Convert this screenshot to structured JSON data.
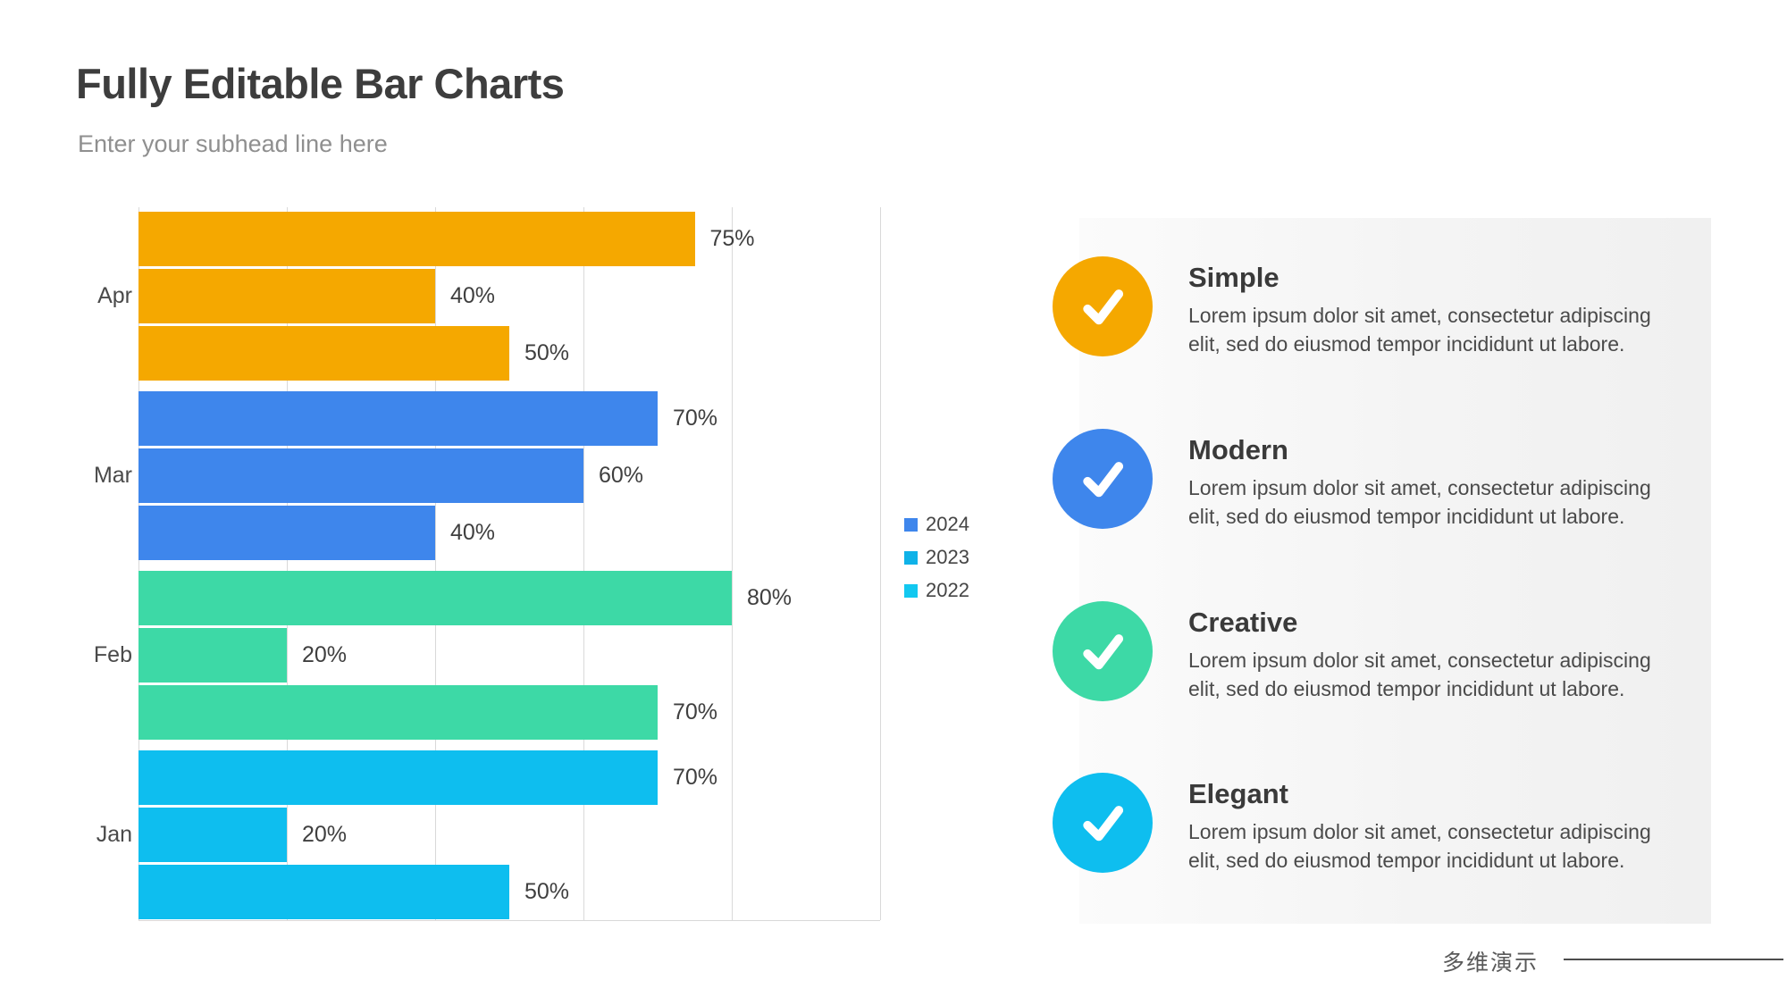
{
  "header": {
    "title": "Fully Editable Bar Charts",
    "subtitle": "Enter your subhead line here"
  },
  "chart_data": {
    "type": "bar",
    "orientation": "horizontal",
    "unit": "%",
    "xlim": [
      0,
      100
    ],
    "gridline_step": 20,
    "grid": true,
    "legend_position": "right",
    "categories": [
      "Apr",
      "Mar",
      "Feb",
      "Jan"
    ],
    "groups": [
      {
        "label": "Apr",
        "color": "#F5A800",
        "values": [
          75,
          40,
          50
        ]
      },
      {
        "label": "Mar",
        "color": "#3E86EC",
        "values": [
          70,
          60,
          40
        ]
      },
      {
        "label": "Feb",
        "color": "#3DD9A6",
        "values": [
          80,
          20,
          70
        ]
      },
      {
        "label": "Jan",
        "color": "#0EBEEF",
        "values": [
          70,
          20,
          50
        ]
      }
    ],
    "value_label_format": "{value}%",
    "legend": [
      {
        "label": "2024",
        "color": "#3E86EC"
      },
      {
        "label": "2023",
        "color": "#0FB2E8"
      },
      {
        "label": "2022",
        "color": "#12C8F0"
      }
    ]
  },
  "features": [
    {
      "title": "Simple",
      "color": "#F5A800",
      "icon": "check-icon",
      "description_lines": [
        "Lorem ipsum dolor sit amet, consectetur adipiscing",
        "elit, sed do eiusmod tempor incididunt ut labore."
      ]
    },
    {
      "title": "Modern",
      "color": "#3E86EC",
      "icon": "check-icon",
      "description_lines": [
        "Lorem ipsum dolor sit amet, consectetur adipiscing",
        "elit, sed do eiusmod tempor incididunt ut labore."
      ]
    },
    {
      "title": "Creative",
      "color": "#3DD9A6",
      "icon": "check-icon",
      "description_lines": [
        "Lorem ipsum dolor sit amet, consectetur adipiscing",
        "elit, sed do eiusmod tempor incididunt ut labore."
      ]
    },
    {
      "title": "Elegant",
      "color": "#0EBEEF",
      "icon": "check-icon",
      "description_lines": [
        "Lorem ipsum dolor sit amet, consectetur adipiscing",
        "elit, sed do eiusmod tempor incididunt ut labore."
      ]
    }
  ],
  "footer": {
    "brand": "多维演示"
  }
}
